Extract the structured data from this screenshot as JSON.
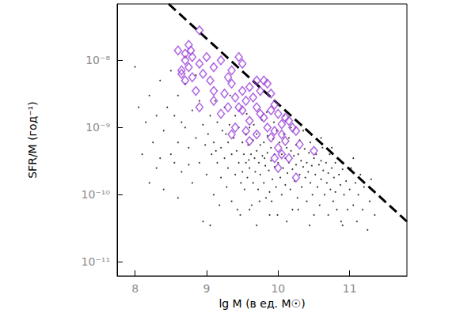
{
  "chart_data": {
    "type": "scatter",
    "x_label": "lg M (в ед. M☉)",
    "y_label": "SFR/M (год⁻¹)",
    "log": "y",
    "grid": false,
    "xlim": [
      7.75,
      11.8
    ],
    "xticks": [
      8,
      9,
      10,
      11
    ],
    "ylim": [
      6.2e-12,
      6.9e-08
    ],
    "yticks": [
      {
        "value": 1e-11,
        "label": "10⁻¹¹"
      },
      {
        "value": 1e-10,
        "label": "10⁻¹⁰"
      },
      {
        "value": 1e-09,
        "label": "10⁻⁹"
      },
      {
        "value": 1e-08,
        "label": "10⁻⁸"
      }
    ],
    "series": [
      {
        "type": "scatter",
        "marker": "dot",
        "color": "#000000",
        "x": [
          8.0,
          8.05,
          8.1,
          8.15,
          8.2,
          8.25,
          8.3,
          8.3,
          8.35,
          8.4,
          8.4,
          8.45,
          8.5,
          8.5,
          8.2,
          8.35,
          8.55,
          8.6,
          8.6,
          8.65,
          8.7,
          8.7,
          8.75,
          8.8,
          8.8,
          8.85,
          8.9,
          8.9,
          8.95,
          8.95,
          8.6,
          8.75,
          8.85,
          8.65,
          8.55,
          8.98,
          9.0,
          9.02,
          9.05,
          9.07,
          9.1,
          9.1,
          9.12,
          9.15,
          9.15,
          9.18,
          9.2,
          9.2,
          9.22,
          9.25,
          9.25,
          9.28,
          9.3,
          9.3,
          9.32,
          9.35,
          9.35,
          9.38,
          9.4,
          9.4,
          9.42,
          9.45,
          9.45,
          9.48,
          9.5,
          9.5,
          9.05,
          9.33,
          9.47,
          9.13,
          9.27,
          9.43,
          9.52,
          9.53,
          9.55,
          9.55,
          9.57,
          9.58,
          9.6,
          9.6,
          9.62,
          9.63,
          9.65,
          9.65,
          9.67,
          9.68,
          9.7,
          9.7,
          9.72,
          9.73,
          9.75,
          9.75,
          9.77,
          9.78,
          9.8,
          9.8,
          9.82,
          9.83,
          9.85,
          9.85,
          9.87,
          9.88,
          9.9,
          9.9,
          9.92,
          9.93,
          9.95,
          9.95,
          9.97,
          9.98,
          9.99,
          9.6,
          9.7,
          9.88,
          9.56,
          9.66,
          9.84,
          9.94,
          9.74,
          9.91,
          9.59,
          9.81,
          10.0,
          10.02,
          10.03,
          10.05,
          10.05,
          10.07,
          10.08,
          10.1,
          10.1,
          10.12,
          10.13,
          10.15,
          10.15,
          10.17,
          10.18,
          10.2,
          10.2,
          10.22,
          10.23,
          10.25,
          10.25,
          10.27,
          10.28,
          10.3,
          10.3,
          10.32,
          10.33,
          10.35,
          10.37,
          10.38,
          10.4,
          10.4,
          10.42,
          10.43,
          10.45,
          10.45,
          10.47,
          10.48,
          10.5,
          10.5,
          10.08,
          10.18,
          10.35,
          10.12,
          10.28,
          10.44,
          10.52,
          10.53,
          10.55,
          10.57,
          10.58,
          10.6,
          10.6,
          10.62,
          10.63,
          10.65,
          10.67,
          10.68,
          10.7,
          10.7,
          10.72,
          10.73,
          10.75,
          10.77,
          10.78,
          10.8,
          10.8,
          10.82,
          10.85,
          10.87,
          10.88,
          10.9,
          10.92,
          10.95,
          10.97,
          10.6,
          10.75,
          10.9,
          11.0,
          11.02,
          11.05,
          11.08,
          11.1,
          11.12,
          11.15,
          11.18,
          11.2,
          11.25,
          11.28,
          11.3,
          11.35,
          11.05
        ],
        "values": [
          8e-09,
          2e-09,
          4e-10,
          1.2e-09,
          3e-09,
          6e-10,
          1.5e-09,
          2.5e-10,
          5e-09,
          9e-10,
          1.2e-10,
          2e-09,
          4e-10,
          7e-09,
          1.5e-10,
          3.5e-10,
          1.5e-09,
          6e-10,
          3e-09,
          2.2e-10,
          1e-09,
          4.5e-09,
          5e-10,
          1.8e-09,
          1.5e-10,
          7e-10,
          3e-10,
          2.5e-09,
          1.1e-09,
          4e-11,
          9e-11,
          2.8e-10,
          6e-09,
          1.2e-09,
          3e-10,
          5.5e-10,
          2e-10,
          8e-10,
          1.5e-09,
          4e-10,
          1e-10,
          6e-10,
          2.5e-09,
          3e-10,
          1.2e-09,
          7e-11,
          5e-10,
          1.8e-10,
          9e-10,
          3.5e-10,
          2e-09,
          1.3e-10,
          6e-10,
          2.5e-10,
          1.1e-09,
          4e-10,
          8e-11,
          7e-10,
          2e-10,
          1.5e-09,
          4.5e-10,
          3e-10,
          1e-09,
          1.5e-10,
          6e-10,
          2.2e-10,
          3.5e-11,
          3e-09,
          5e-11,
          4.5e-10,
          8e-10,
          6e-11,
          4e-10,
          1.2e-10,
          8e-10,
          3e-10,
          1.8e-10,
          5.5e-10,
          2.5e-10,
          1e-09,
          4e-10,
          7e-11,
          6.5e-10,
          1.5e-10,
          3.5e-10,
          2.2e-10,
          8e-10,
          4.5e-10,
          1.2e-10,
          3e-10,
          5.5e-10,
          2e-10,
          1.3e-09,
          3.8e-10,
          6e-10,
          1.5e-10,
          2.7e-10,
          9e-11,
          4.2e-10,
          7.5e-10,
          2.3e-10,
          1.1e-10,
          5e-10,
          3.2e-10,
          1.7e-10,
          6.8e-10,
          2.6e-10,
          4e-10,
          1.3e-10,
          9e-10,
          5e-11,
          6e-11,
          3.5e-11,
          5e-11,
          1.6e-09,
          1.1e-09,
          1.7e-09,
          1.2e-09,
          8e-11,
          8e-11,
          3.3e-10,
          3.5e-10,
          3e-10,
          6e-10,
          1.8e-10,
          4e-10,
          1e-10,
          2.5e-10,
          8e-10,
          3.5e-10,
          1.4e-10,
          5e-10,
          2.1e-10,
          7e-10,
          3e-10,
          1.2e-10,
          4.5e-10,
          2.4e-10,
          6e-11,
          3.8e-10,
          1.6e-10,
          5.5e-10,
          2.8e-10,
          9e-11,
          4e-10,
          2e-10,
          6.5e-10,
          3.2e-10,
          1.3e-10,
          2.6e-10,
          4.8e-10,
          1.8e-10,
          3e-10,
          8e-11,
          2.2e-10,
          4.2e-10,
          1.5e-10,
          6e-10,
          2.7e-10,
          1e-10,
          3.5e-10,
          5e-11,
          1.5e-09,
          1e-09,
          9e-10,
          4e-11,
          6e-11,
          3.5e-11,
          2e-10,
          4e-10,
          1.3e-10,
          2.8e-10,
          7e-11,
          3.2e-10,
          1.7e-10,
          5e-10,
          2.3e-10,
          1e-10,
          3e-10,
          1.5e-10,
          2.1e-10,
          5e-11,
          4e-10,
          1.2e-10,
          2.5e-10,
          8e-11,
          1.8e-10,
          3e-10,
          1.1e-10,
          6e-11,
          2e-10,
          1.4e-10,
          4e-11,
          2.4e-10,
          1e-10,
          1.6e-10,
          6e-11,
          7e-10,
          5e-10,
          3.5e-11,
          1.2e-10,
          2.5e-10,
          7e-11,
          1.5e-10,
          4e-11,
          1e-10,
          2e-10,
          6e-11,
          1.3e-10,
          3e-11,
          8e-11,
          1.7e-10,
          5e-11,
          3.5e-10
        ]
      },
      {
        "type": "scatter",
        "marker": "diamond",
        "color": "#9b3fd9",
        "x": [
          8.9,
          8.75,
          8.78,
          8.7,
          8.8,
          8.7,
          8.75,
          8.65,
          8.9,
          9.0,
          8.95,
          9.05,
          8.8,
          8.7,
          9.1,
          9.2,
          9.1,
          8.85,
          9.3,
          9.35,
          9.45,
          9.5,
          9.25,
          9.35,
          9.4,
          9.5,
          9.55,
          9.6,
          9.7,
          9.75,
          9.8,
          9.85,
          9.9,
          9.65,
          9.45,
          9.3,
          9.2,
          9.5,
          9.6,
          9.7,
          9.75,
          9.8,
          9.9,
          9.95,
          10.0,
          10.05,
          10.1,
          10.15,
          9.85,
          9.95,
          10.05,
          10.2,
          10.25,
          9.7,
          9.6,
          9.4,
          9.9,
          10.0,
          10.1,
          10.3,
          10.5,
          10.15,
          9.95,
          10.0,
          10.25,
          10.05,
          9.55,
          9.35,
          9.1,
          8.9,
          8.65,
          8.6
        ],
        "values": [
          2.8e-08,
          1.7e-08,
          1.4e-08,
          1.26e-08,
          1.12e-08,
          1e-08,
          7.9e-09,
          7.1e-09,
          8.9e-09,
          1.12e-08,
          6.3e-09,
          5e-09,
          5.6e-09,
          5e-09,
          7.9e-09,
          1e-08,
          3.5e-09,
          3.5e-09,
          5.6e-09,
          7.1e-09,
          1.12e-08,
          8.9e-09,
          3.2e-09,
          4.5e-09,
          2.8e-09,
          3.5e-09,
          2.5e-09,
          4e-09,
          5e-09,
          3.5e-09,
          5e-09,
          4.5e-09,
          3.2e-09,
          2.8e-09,
          2e-09,
          2e-09,
          1.6e-09,
          1.8e-09,
          1.26e-09,
          2e-09,
          1.6e-09,
          1.4e-09,
          1.8e-09,
          2.2e-09,
          1.6e-09,
          1.12e-09,
          1.4e-09,
          1.26e-09,
          1e-09,
          8.9e-10,
          7.9e-10,
          1e-09,
          8.9e-10,
          7.9e-10,
          6.3e-10,
          1e-09,
          7.1e-10,
          5e-10,
          6.3e-10,
          5.6e-10,
          4.5e-10,
          3.5e-10,
          3.5e-10,
          2.5e-10,
          1.8e-10,
          4e-10,
          8.9e-10,
          7.9e-10,
          2.5e-09,
          2e-09,
          6.3e-09,
          1.4e-08
        ]
      },
      {
        "type": "line",
        "line_style": "dashed",
        "color": "#000000",
        "x": [
          8.47,
          11.8
        ],
        "values": [
          6.9e-08,
          4e-11
        ]
      }
    ]
  }
}
